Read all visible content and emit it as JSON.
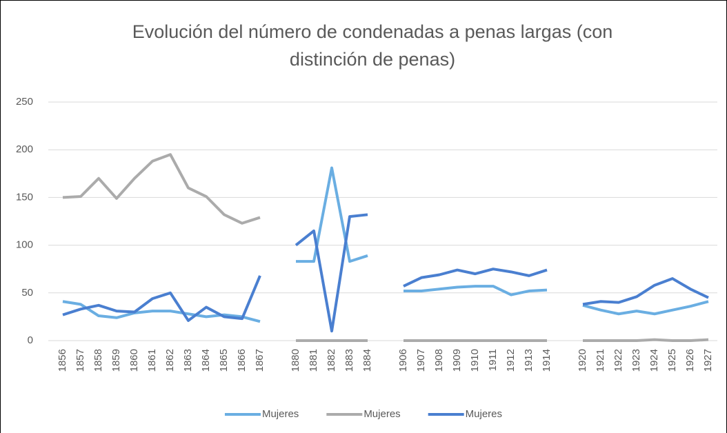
{
  "chart_data": {
    "type": "line",
    "title": "Evolución del número de condenadas a penas largas (con distinción de penas)",
    "categories": [
      "1856",
      "1857",
      "1858",
      "1859",
      "1860",
      "1861",
      "1862",
      "1863",
      "1864",
      "1865",
      "1866",
      "1867",
      null,
      "1880",
      "1881",
      "1882",
      "1883",
      "1884",
      null,
      "1906",
      "1907",
      "1908",
      "1909",
      "1910",
      "1911",
      "1912",
      "1913",
      "1914",
      null,
      "1920",
      "1921",
      "1922",
      "1923",
      "1924",
      "1925",
      "1926",
      "1927"
    ],
    "series": [
      {
        "name": "Mujeres",
        "color": "#6aaee2",
        "values": [
          41,
          38,
          26,
          24,
          29,
          31,
          31,
          28,
          25,
          27,
          25,
          20,
          null,
          83,
          83,
          181,
          83,
          89,
          null,
          52,
          52,
          54,
          56,
          57,
          57,
          48,
          52,
          53,
          null,
          37,
          32,
          28,
          31,
          28,
          32,
          36,
          41
        ]
      },
      {
        "name": "Mujeres",
        "color": "#ababab",
        "values": [
          150,
          151,
          170,
          149,
          170,
          188,
          195,
          160,
          151,
          132,
          123,
          129,
          null,
          0,
          0,
          0,
          0,
          0,
          null,
          0,
          0,
          0,
          0,
          0,
          0,
          0,
          0,
          0,
          null,
          0,
          0,
          0,
          0,
          1,
          0,
          0,
          1
        ]
      },
      {
        "name": "Mujeres",
        "color": "#4a7fd0",
        "values": [
          27,
          33,
          37,
          31,
          30,
          44,
          50,
          21,
          35,
          25,
          23,
          68,
          null,
          100,
          115,
          10,
          130,
          132,
          null,
          57,
          66,
          69,
          74,
          70,
          75,
          72,
          68,
          74,
          null,
          38,
          41,
          40,
          46,
          58,
          65,
          54,
          45
        ]
      }
    ],
    "ylim": [
      0,
      250
    ],
    "yticks": [
      0,
      50,
      100,
      150,
      200,
      250
    ],
    "grid": true,
    "legend": "bottom"
  }
}
